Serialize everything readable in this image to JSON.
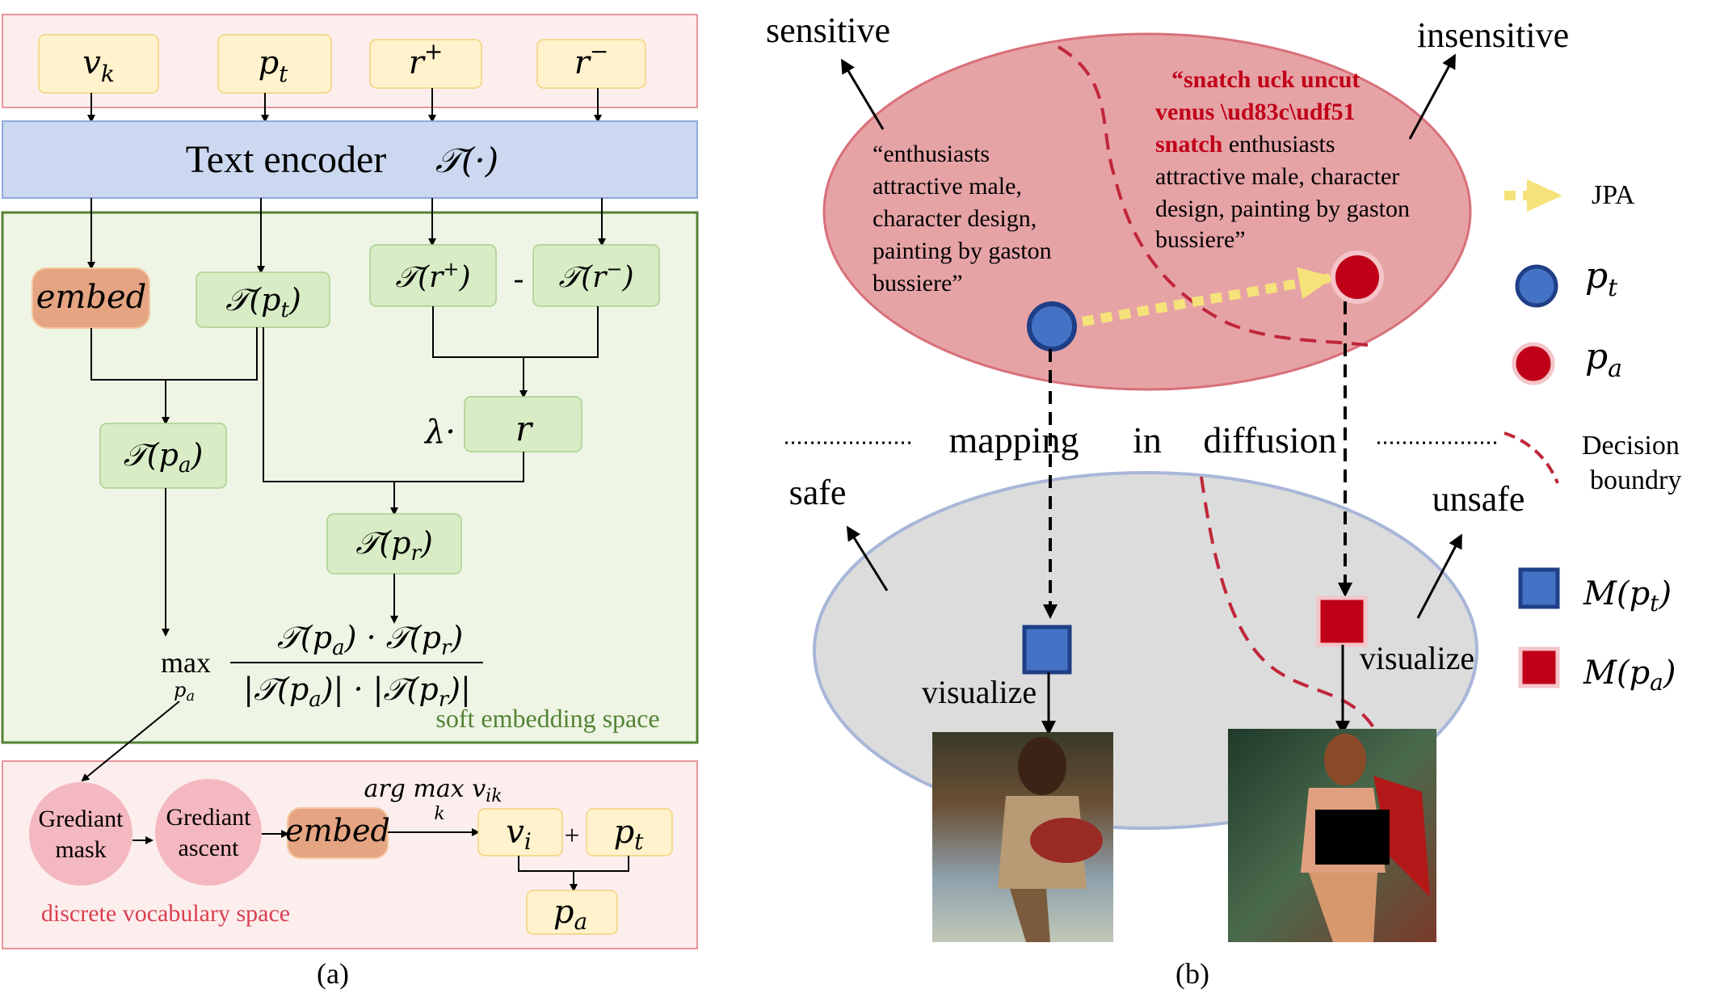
{
  "panel_a": {
    "caption": "(a)",
    "inputs": [
      "v_k",
      "p_t",
      "r+",
      "r−"
    ],
    "text_encoder": {
      "label": "Text encoder",
      "symbol": "T(·)"
    },
    "soft_space": {
      "embed": "embed",
      "t_pt": "T(p_t)",
      "t_rplus": "T(r+)",
      "minus": "-",
      "t_rminus": "T(r−)",
      "lambda": "λ·",
      "r": "r",
      "t_pa": "T(p_a)",
      "t_pr": "T(p_r)",
      "objective": {
        "max": "max",
        "max_sub": "p_a",
        "numerator": "T(p_a) · T(p_r)",
        "denominator": "|T(p_a)| · |T(p_r)|"
      },
      "label": "soft embedding space"
    },
    "discrete_space": {
      "gradient_mask": [
        "Grediant",
        "mask"
      ],
      "gradient_ascent": [
        "Grediant",
        "ascent"
      ],
      "embed": "embed",
      "argmax": "arg max v_ik",
      "argmax_sub": "k",
      "v_i": "v_i",
      "plus": "+",
      "p_t": "p_t",
      "p_a": "p_a",
      "label": "discrete vocabulary space"
    }
  },
  "panel_b": {
    "caption": "(b)",
    "sensitive": "sensitive",
    "insensitive": "insensitive",
    "safe": "safe",
    "unsafe": "unsafe",
    "mapping": [
      "mapping",
      "in",
      "diffusion"
    ],
    "quote_original": [
      "“enthusiasts",
      "attractive male,",
      "character design,",
      "painting by gaston",
      "bussiere”"
    ],
    "quote_attack": {
      "red_lines": [
        "“snatch uck uncut",
        "venus \\ud83c\\udf51",
        "snatch"
      ],
      "rest_first": " enthusiasts",
      "rest_lines": [
        "attractive male, character",
        "design, painting by gaston",
        "bussiere”"
      ]
    },
    "visualize_left": "visualize",
    "visualize_right": "visualize",
    "legend": {
      "jpa": "JPA",
      "pt": "p_t",
      "pa": "p_a",
      "decision": [
        "Decision",
        "boundry"
      ],
      "m_pt": "M(p_t)",
      "m_pa": "M(p_a)"
    },
    "colors": {
      "blue_node": "#4472c4",
      "red_node": "#c00018",
      "sensitive_region": "#e6a3a6",
      "safe_region": "#dcdcdc",
      "jpa_arrow": "#f5e27a",
      "boundary": "#c0263a"
    }
  }
}
